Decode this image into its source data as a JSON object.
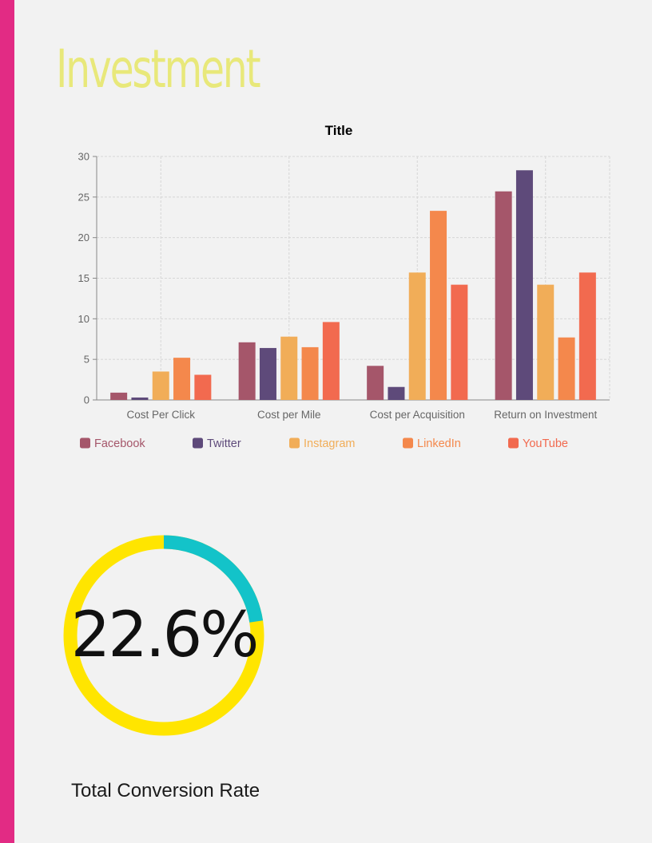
{
  "page": {
    "title": "Investment",
    "title_color": "#e8e87a",
    "accent_bar_color": "#e22b84"
  },
  "chart_data": {
    "type": "bar",
    "title": "Title",
    "xlabel": "",
    "ylabel": "",
    "categories": [
      "Cost Per Click",
      "Cost per Mile",
      "Cost per Acquisition",
      "Return on Investment"
    ],
    "series": [
      {
        "name": "Facebook",
        "color": "#a5566a",
        "values": [
          0.9,
          7.1,
          4.2,
          25.7
        ]
      },
      {
        "name": "Twitter",
        "color": "#5e4a7a",
        "values": [
          0.3,
          6.4,
          1.6,
          28.3
        ]
      },
      {
        "name": "Instagram",
        "color": "#f1ad58",
        "values": [
          3.5,
          7.8,
          15.7,
          14.2
        ]
      },
      {
        "name": "LinkedIn",
        "color": "#f4884c",
        "values": [
          5.2,
          6.5,
          23.3,
          7.7
        ]
      },
      {
        "name": "YouTube",
        "color": "#f26a4f",
        "values": [
          3.1,
          9.6,
          14.2,
          15.7
        ]
      }
    ],
    "ylim": [
      0,
      30
    ],
    "yticks": [
      0,
      5,
      10,
      15,
      20,
      25,
      30
    ],
    "grid": true,
    "legend_position": "bottom"
  },
  "metric": {
    "type": "donut",
    "value_label": "22.6%",
    "percent": 22.6,
    "label": "Total Conversion Rate",
    "fill_color": "#13c3c9",
    "track_color": "#ffe500"
  }
}
